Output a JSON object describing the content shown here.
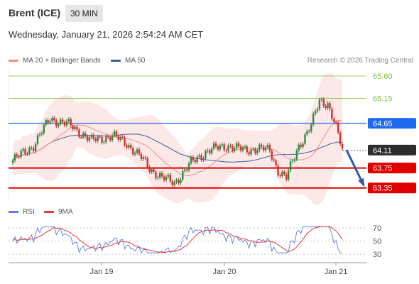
{
  "header": {
    "instrument": "Brent (ICE)",
    "timeframe": "30 MIN"
  },
  "datetime": "Wednesday, January 21, 2026 2:54:24 AM CET",
  "legend": {
    "ma20_label": "MA 20 + Bollinger Bands",
    "ma50_label": "MA 50"
  },
  "credit": "Research © 2026 Trading Central",
  "rsi_legend": {
    "rsi_label": "RSI",
    "ma_label": "9MA"
  },
  "colors": {
    "ma20": "#f28b82",
    "ma50": "#3c5a9a",
    "band": "#fde4e4",
    "support": "#e00000",
    "resistance": "#4477ee",
    "target": "#7fbf3f",
    "up": "#2b8a3e",
    "down": "#d32f2f",
    "arrow": "#2e5aa8",
    "rsi": "#5b7be0",
    "rsi_ma": "#e53935"
  },
  "chart_data": [
    {
      "type": "candlestick",
      "title": "Brent (ICE)",
      "timeframe": "30 MIN",
      "x_ticks": [
        "Jan 19",
        "Jan 20",
        "Jan 21"
      ],
      "levels": [
        {
          "value": 65.6,
          "label": "65.60",
          "kind": "target"
        },
        {
          "value": 65.15,
          "label": "65.15",
          "kind": "target"
        },
        {
          "value": 64.65,
          "label": "64.65",
          "kind": "resistance"
        },
        {
          "value": 64.11,
          "label": "64.11",
          "kind": "last"
        },
        {
          "value": 63.75,
          "label": "63.75",
          "kind": "support"
        },
        {
          "value": 63.35,
          "label": "63.35",
          "kind": "support"
        }
      ],
      "last_price": 64.11,
      "forecast": {
        "from": 64.11,
        "to": 63.35,
        "direction": "down"
      },
      "series": [
        {
          "name": "MA 20 + Bollinger Bands"
        },
        {
          "name": "MA 50"
        }
      ]
    },
    {
      "type": "line",
      "title": "RSI",
      "y_ticks": [
        70,
        50,
        30
      ],
      "series": [
        {
          "name": "RSI"
        },
        {
          "name": "9MA"
        }
      ]
    }
  ]
}
